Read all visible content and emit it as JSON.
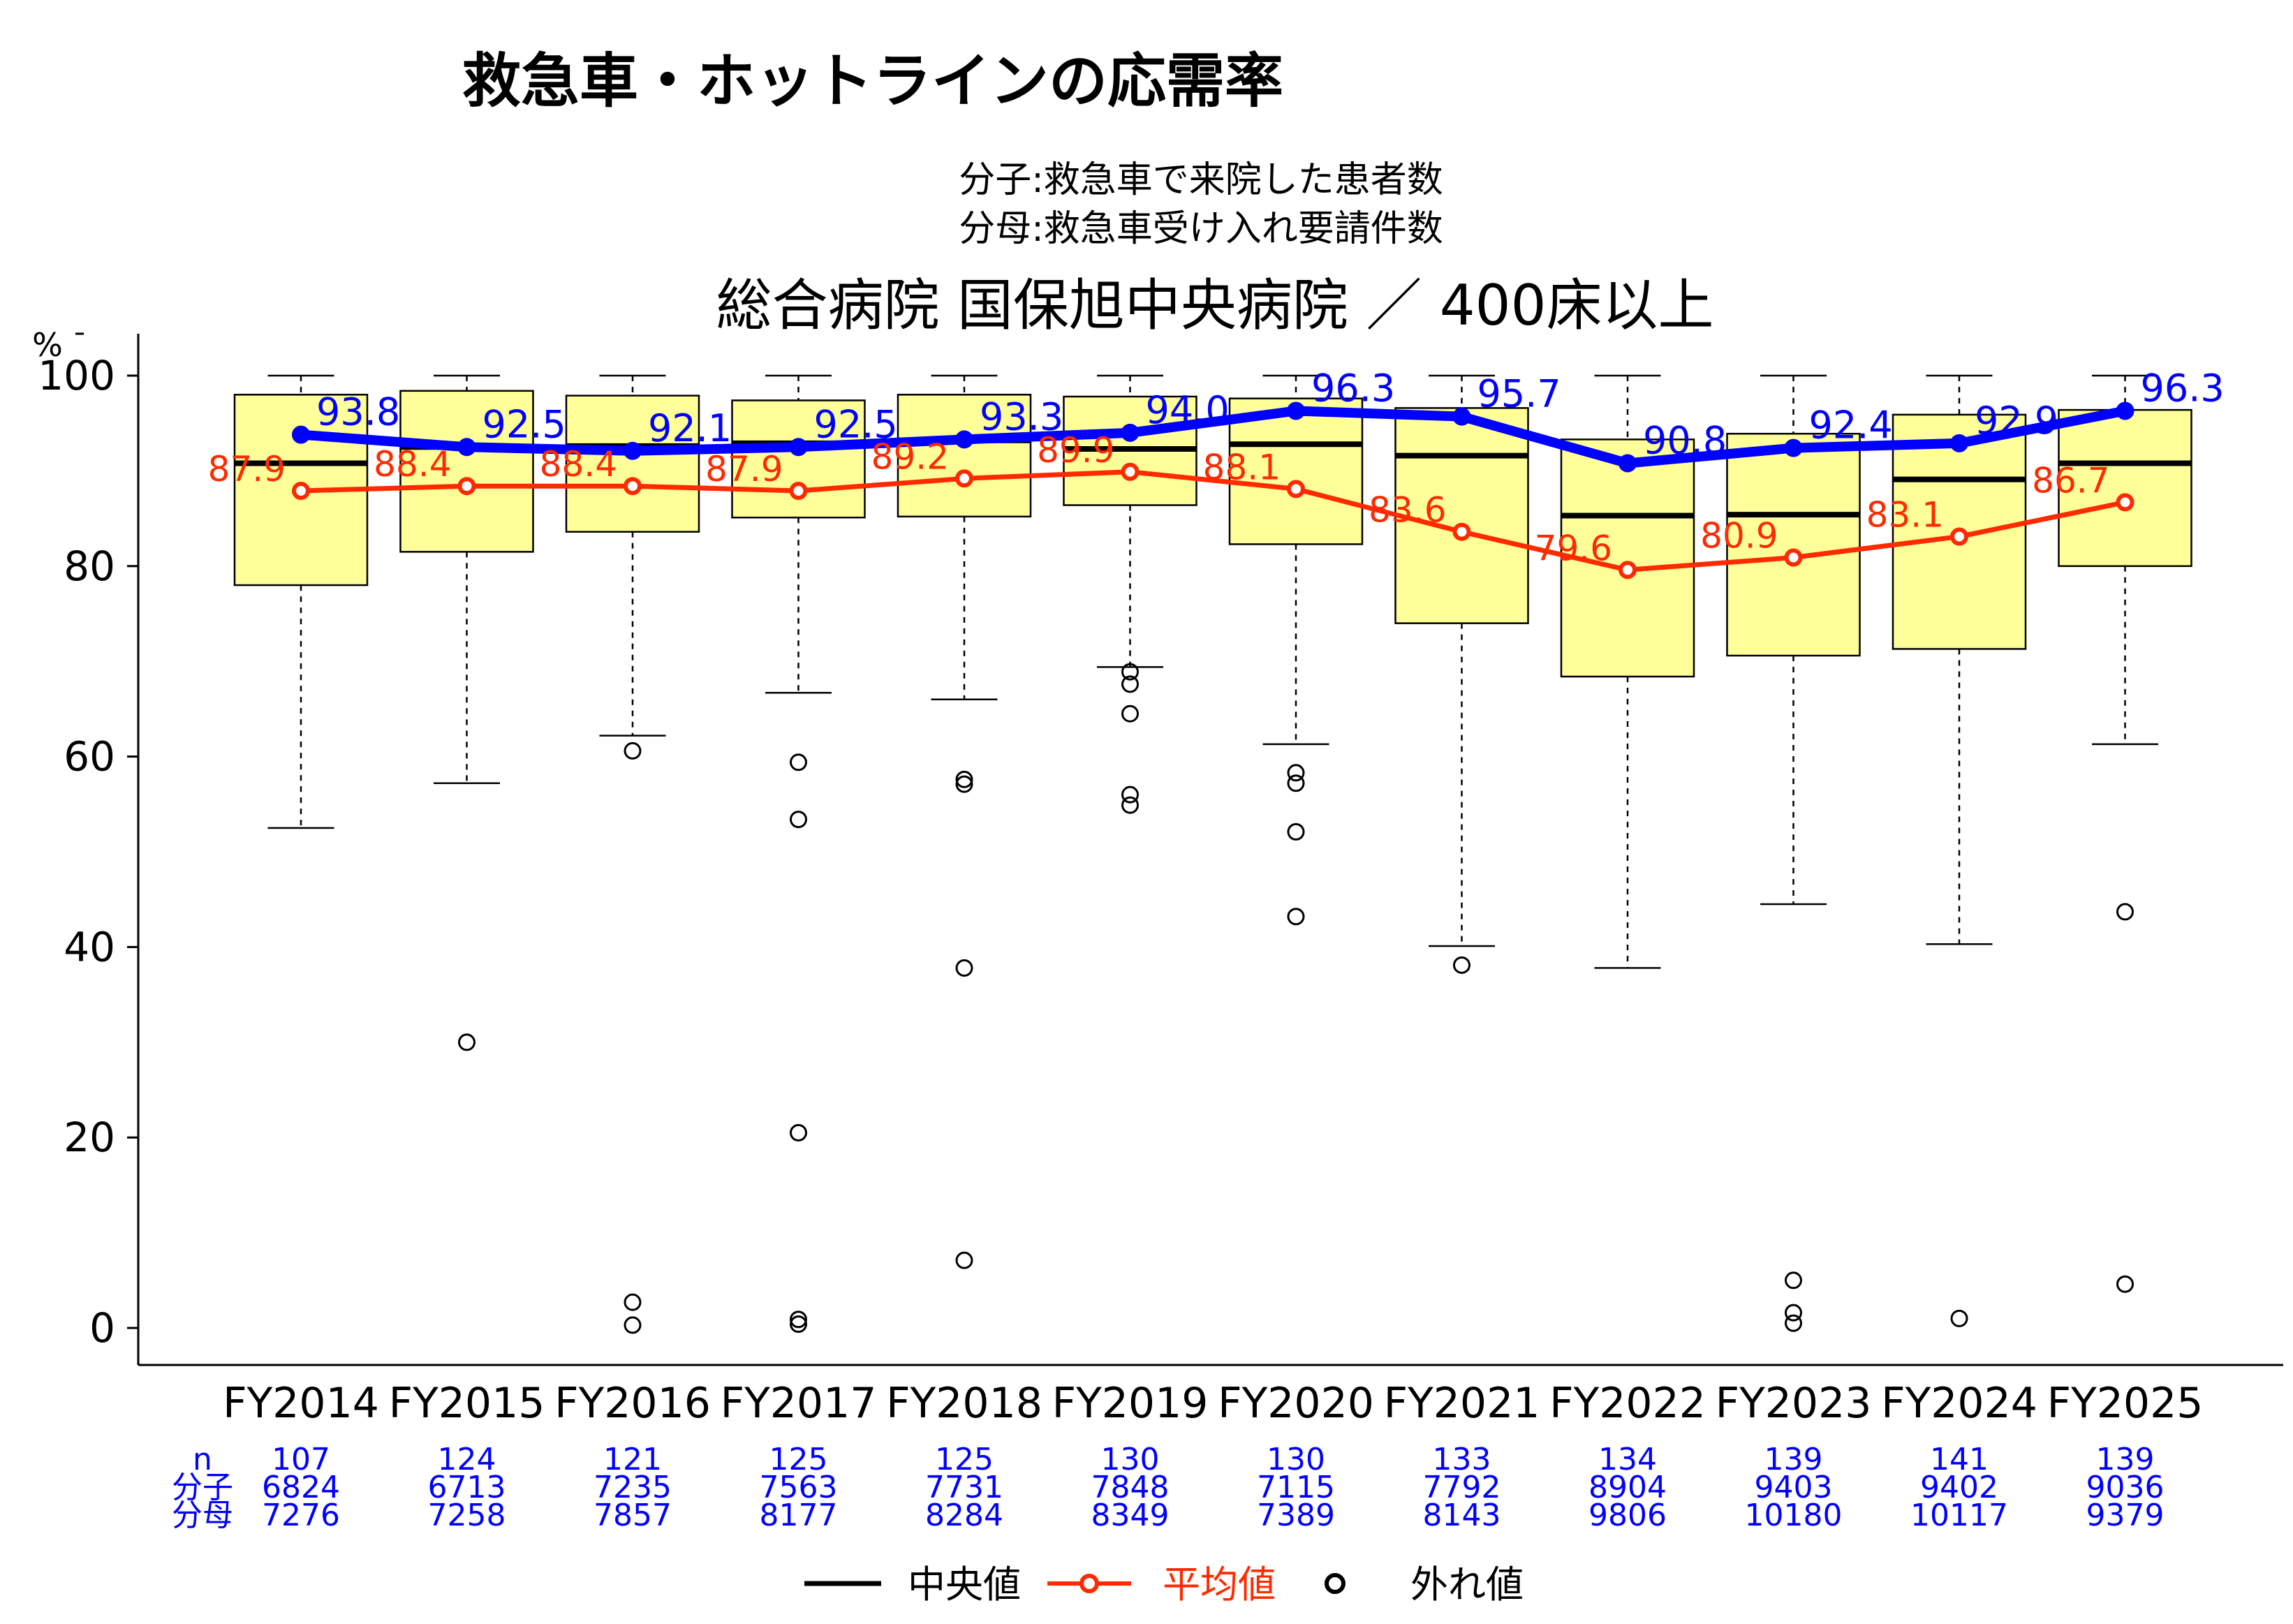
{
  "chart_data": {
    "type": "boxplot",
    "title": "救急車・ホットラインの応需率",
    "subtitle_lines": [
      "分子:救急車で来院した患者数",
      "分母:救急車受け入れ要請件数"
    ],
    "hospital_title": "総合病院  国保旭中央病院  ／  400床以上",
    "y_unit": "%",
    "ylim": [
      0,
      100
    ],
    "y_ticks": [
      0,
      20,
      40,
      60,
      80,
      100
    ],
    "categories": [
      "FY2014",
      "FY2015",
      "FY2016",
      "FY2017",
      "FY2018",
      "FY2019",
      "FY2020",
      "FY2021",
      "FY2022",
      "FY2023",
      "FY2024",
      "FY2025"
    ],
    "boxes": [
      {
        "q1": 78.0,
        "median": 90.8,
        "q3": 98.0,
        "whisker_low": 52.5,
        "whisker_high": 100,
        "outliers": []
      },
      {
        "q1": 81.5,
        "median": 92.5,
        "q3": 98.4,
        "whisker_low": 57.2,
        "whisker_high": 100,
        "outliers": [
          30.0
        ]
      },
      {
        "q1": 83.6,
        "median": 92.6,
        "q3": 97.9,
        "whisker_low": 62.2,
        "whisker_high": 100,
        "outliers": [
          60.6,
          2.7,
          0.3
        ]
      },
      {
        "q1": 85.1,
        "median": 92.9,
        "q3": 97.4,
        "whisker_low": 66.7,
        "whisker_high": 100,
        "outliers": [
          59.4,
          53.4,
          20.5,
          0.9,
          0.4
        ]
      },
      {
        "q1": 85.2,
        "median": 93.2,
        "q3": 98.0,
        "whisker_low": 66.0,
        "whisker_high": 100,
        "outliers": [
          57.6,
          57.1,
          37.8,
          7.1
        ]
      },
      {
        "q1": 86.4,
        "median": 92.3,
        "q3": 97.8,
        "whisker_low": 69.4,
        "whisker_high": 100,
        "outliers": [
          68.9,
          67.6,
          64.5,
          56.0,
          54.9
        ]
      },
      {
        "q1": 82.3,
        "median": 92.8,
        "q3": 97.6,
        "whisker_low": 61.3,
        "whisker_high": 100,
        "outliers": [
          58.3,
          57.2,
          52.1,
          43.2
        ]
      },
      {
        "q1": 74.0,
        "median": 91.6,
        "q3": 96.6,
        "whisker_low": 40.1,
        "whisker_high": 100,
        "outliers": [
          38.1
        ]
      },
      {
        "q1": 68.4,
        "median": 85.3,
        "q3": 93.3,
        "whisker_low": 37.8,
        "whisker_high": 100,
        "outliers": []
      },
      {
        "q1": 70.6,
        "median": 85.4,
        "q3": 93.9,
        "whisker_low": 44.5,
        "whisker_high": 100,
        "outliers": [
          5.0,
          1.6,
          0.5
        ]
      },
      {
        "q1": 71.3,
        "median": 89.1,
        "q3": 95.9,
        "whisker_low": 40.3,
        "whisker_high": 100,
        "outliers": [
          1.0
        ]
      },
      {
        "q1": 80.0,
        "median": 90.8,
        "q3": 96.4,
        "whisker_low": 61.3,
        "whisker_high": 100,
        "outliers": [
          43.7,
          4.6
        ]
      }
    ],
    "series": [
      {
        "name": "",
        "color": "#0000ff",
        "values": [
          93.8,
          92.5,
          92.1,
          92.5,
          93.3,
          94.0,
          96.3,
          95.7,
          90.8,
          92.4,
          92.9,
          96.3
        ],
        "labels": [
          "93.8",
          "92.5",
          "92.1",
          "92.5",
          "93.3",
          "94.0",
          "96.3",
          "95.7",
          "90.8",
          "92.4",
          "92.9",
          "96.3"
        ]
      },
      {
        "name": "平均値",
        "color": "#ff2a00",
        "values": [
          87.9,
          88.4,
          88.4,
          87.9,
          89.2,
          89.9,
          88.1,
          83.6,
          79.6,
          80.9,
          83.1,
          86.7
        ],
        "labels": [
          "87.9",
          "88.4",
          "88.4",
          "87.9",
          "89.2",
          "89.9",
          "88.1",
          "83.6",
          "79.6",
          "80.9",
          "83.1",
          "86.7"
        ]
      }
    ],
    "table": {
      "row_labels": [
        "n",
        "分子",
        "分母"
      ],
      "n": [
        "107",
        "124",
        "121",
        "125",
        "125",
        "130",
        "130",
        "133",
        "134",
        "139",
        "141",
        "139"
      ],
      "numerator": [
        "6824",
        "6713",
        "7235",
        "7563",
        "7731",
        "7848",
        "7115",
        "7792",
        "8904",
        "9403",
        "9402",
        "9036"
      ],
      "denominator": [
        "7276",
        "7258",
        "7857",
        "8177",
        "8284",
        "8349",
        "7389",
        "8143",
        "9806",
        "10180",
        "10117",
        "9379"
      ]
    },
    "legend": {
      "median": "中央値",
      "mean": "平均値",
      "outlier": "外れ値",
      "placement": "bottom"
    },
    "colors": {
      "box_fill": "#ffff99",
      "blue": "#0000ff",
      "red": "#ff2a00",
      "axis": "#000000"
    }
  }
}
